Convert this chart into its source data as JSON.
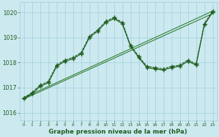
{
  "title": "Graphe pression niveau de la mer (hPa)",
  "xlim": [
    -0.5,
    23.5
  ],
  "ylim": [
    1015.7,
    1020.4
  ],
  "yticks": [
    1016,
    1017,
    1018,
    1019,
    1020
  ],
  "xticks": [
    0,
    1,
    2,
    3,
    4,
    5,
    6,
    7,
    8,
    9,
    10,
    11,
    12,
    13,
    14,
    15,
    16,
    17,
    18,
    19,
    20,
    21,
    22,
    23
  ],
  "bg_color": "#cce9f0",
  "grid_color": "#9dcdd8",
  "line_color": "#1e5e1e",
  "line_color2": "#2d7a2d",
  "curve1": {
    "x": [
      0,
      1,
      2,
      3,
      4,
      5,
      6,
      7,
      8,
      9,
      10,
      11,
      12,
      13,
      14,
      15,
      16,
      17,
      18,
      19,
      20,
      21,
      22,
      23
    ],
    "y": [
      1016.55,
      1016.75,
      1017.05,
      1017.2,
      1017.85,
      1018.05,
      1018.15,
      1018.35,
      1019.0,
      1019.25,
      1019.6,
      1019.75,
      1019.55,
      1018.65,
      1018.2,
      1017.8,
      1017.75,
      1017.7,
      1017.8,
      1017.85,
      1018.05,
      1017.9,
      1019.5,
      1020.0
    ]
  },
  "curve2": {
    "x": [
      0,
      1,
      2,
      3,
      4,
      5,
      6,
      7,
      8,
      9,
      10,
      11,
      12,
      13,
      14,
      15,
      16,
      17,
      18,
      19,
      20,
      21,
      22,
      23
    ],
    "y": [
      1016.6,
      1016.8,
      1017.1,
      1017.25,
      1017.9,
      1018.1,
      1018.2,
      1018.4,
      1019.05,
      1019.3,
      1019.65,
      1019.8,
      1019.6,
      1018.7,
      1018.25,
      1017.85,
      1017.8,
      1017.75,
      1017.85,
      1017.9,
      1018.1,
      1017.95,
      1019.55,
      1020.05
    ]
  },
  "straight1": {
    "x": [
      0,
      23
    ],
    "y": [
      1016.55,
      1019.95
    ]
  },
  "straight2": {
    "x": [
      0,
      23
    ],
    "y": [
      1016.6,
      1020.05
    ]
  }
}
